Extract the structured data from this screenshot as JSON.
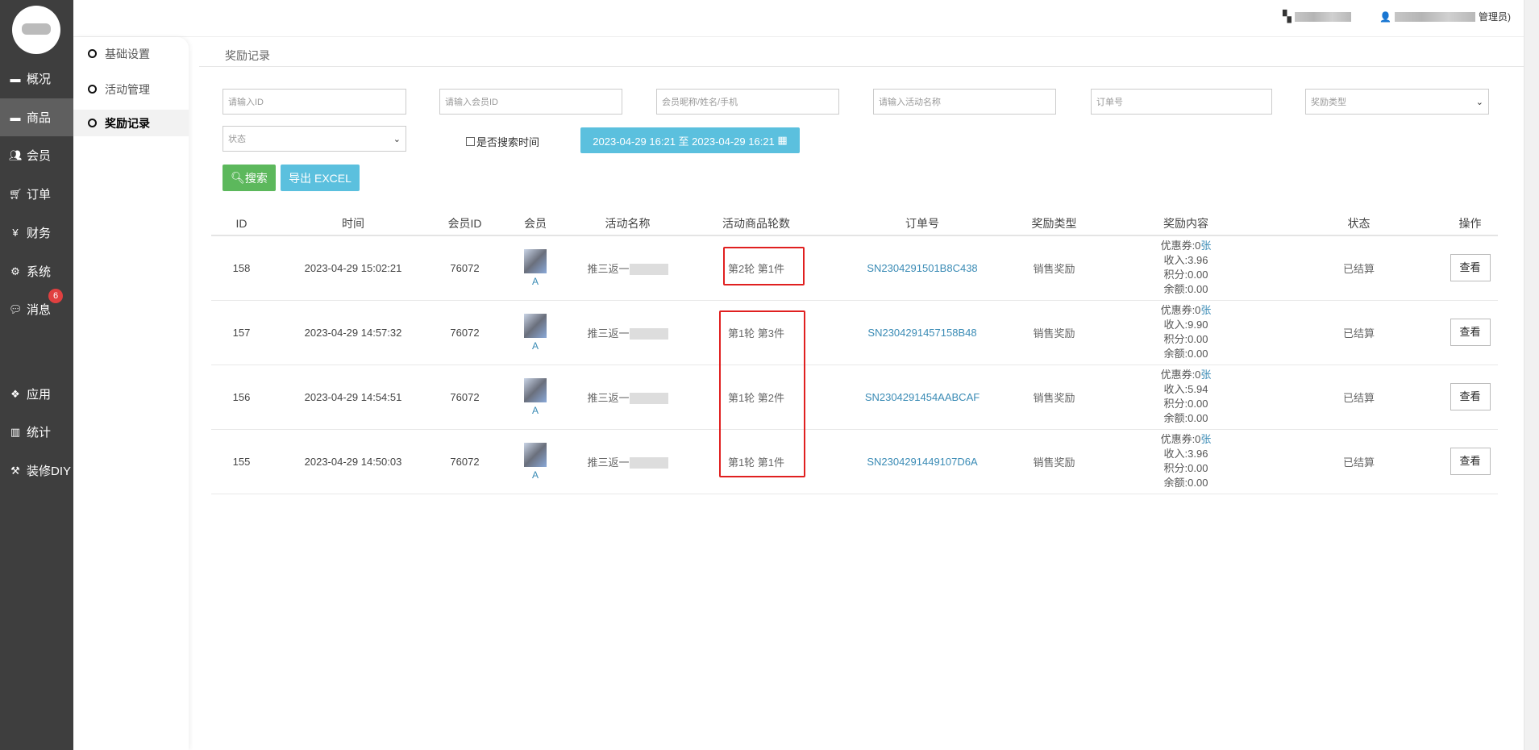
{
  "sidebar": {
    "items": [
      {
        "label": "概况",
        "icon": "archive-icon"
      },
      {
        "label": "商品",
        "icon": "archive-icon",
        "active": true
      },
      {
        "label": "会员",
        "icon": "users-icon"
      },
      {
        "label": "订单",
        "icon": "cart-icon"
      },
      {
        "label": "财务",
        "icon": "yen-icon"
      },
      {
        "label": "系统",
        "icon": "cogs-icon"
      },
      {
        "label": "消息",
        "icon": "comment-icon",
        "badge": "6"
      },
      {
        "label": "应用",
        "icon": "cubes-icon"
      },
      {
        "label": "统计",
        "icon": "bar-chart-icon"
      },
      {
        "label": "装修DIY",
        "icon": "gavel-icon"
      }
    ]
  },
  "topbar": {
    "user_suffix": "管理员)"
  },
  "subnav": {
    "items": [
      {
        "label": "基础设置"
      },
      {
        "label": "活动管理"
      },
      {
        "label": "奖励记录",
        "active": true
      }
    ]
  },
  "breadcrumb": "奖励记录",
  "filters": {
    "id_placeholder": "请输入ID",
    "member_id_placeholder": "请输入会员ID",
    "member_placeholder": "会员昵称/姓名/手机",
    "activity_placeholder": "请输入活动名称",
    "order_placeholder": "订单号",
    "reward_type": "奖励类型",
    "status": "状态",
    "search_time_label": "是否搜索时间",
    "date_range": "2023-04-29 16:21 至 2023-04-29 16:21",
    "search_button": "搜索",
    "export_button": "导出 EXCEL"
  },
  "table": {
    "headers": [
      "ID",
      "时间",
      "会员ID",
      "会员",
      "活动名称",
      "活动商品轮数",
      "订单号",
      "奖励类型",
      "奖励内容",
      "状态",
      "操作"
    ],
    "rows": [
      {
        "id": "158",
        "time": "2023-04-29 15:02:21",
        "member_id": "76072",
        "member": "A",
        "activity": "推三返一",
        "rounds": "第2轮 第1件",
        "order": "SN2304291501B8C438",
        "type": "销售奖励",
        "coupon": "优惠券:0",
        "coupon_unit": "张",
        "income": "收入:3.96",
        "points": "积分:0.00",
        "balance": "余额:0.00",
        "status": "已结算",
        "action": "查看"
      },
      {
        "id": "157",
        "time": "2023-04-29 14:57:32",
        "member_id": "76072",
        "member": "A",
        "activity": "推三返一",
        "rounds": "第1轮 第3件",
        "order": "SN2304291457158B48",
        "type": "销售奖励",
        "coupon": "优惠券:0",
        "coupon_unit": "张",
        "income": "收入:9.90",
        "points": "积分:0.00",
        "balance": "余额:0.00",
        "status": "已结算",
        "action": "查看"
      },
      {
        "id": "156",
        "time": "2023-04-29 14:54:51",
        "member_id": "76072",
        "member": "A",
        "activity": "推三返一",
        "rounds": "第1轮 第2件",
        "order": "SN2304291454AABCAF",
        "type": "销售奖励",
        "coupon": "优惠券:0",
        "coupon_unit": "张",
        "income": "收入:5.94",
        "points": "积分:0.00",
        "balance": "余额:0.00",
        "status": "已结算",
        "action": "查看"
      },
      {
        "id": "155",
        "time": "2023-04-29 14:50:03",
        "member_id": "76072",
        "member": "A",
        "activity": "推三返一",
        "rounds": "第1轮 第1件",
        "order": "SN2304291449107D6A",
        "type": "销售奖励",
        "coupon": "优惠券:0",
        "coupon_unit": "张",
        "income": "收入:3.96",
        "points": "积分:0.00",
        "balance": "余额:0.00",
        "status": "已结算",
        "action": "查看"
      }
    ]
  },
  "colors": {
    "sidebar": "#3e3e3e",
    "search_button": "#5cb85c",
    "export_button": "#5bc0de",
    "link": "#3a8bb5",
    "highlight_box": "#e02020",
    "badge": "#e04040"
  }
}
